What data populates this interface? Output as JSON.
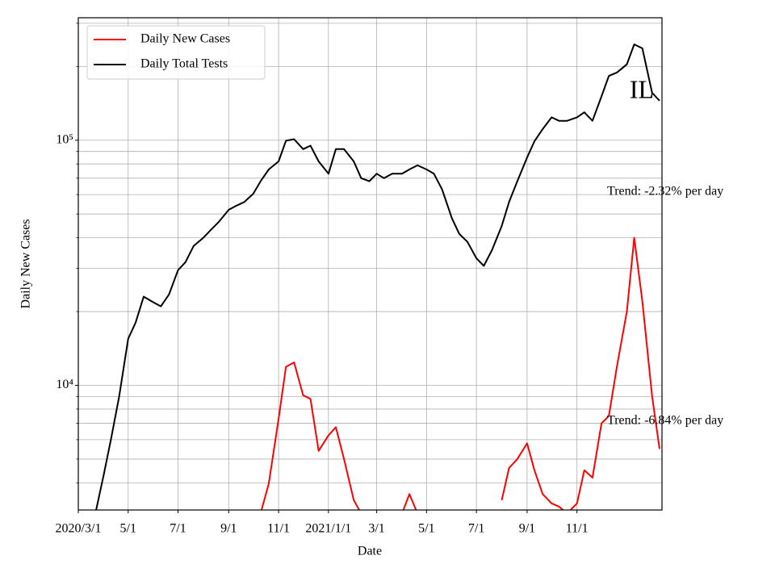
{
  "chart_data": {
    "type": "line",
    "xlabel": "Date",
    "ylabel": "Daily New Cases",
    "log_y": true,
    "grid": true,
    "legend": "upper left",
    "annotations": [
      "IL",
      "Trend: -2.32% per day",
      "Trend: -6.84% per day"
    ],
    "xlim": [
      "2020-03-01",
      "2022-02-13"
    ],
    "ylim": [
      3100,
      316000
    ],
    "xticks": [
      {
        "value": "2020-03-01",
        "label": "2020/3/1"
      },
      {
        "value": "2020-05-01",
        "label": "5/1"
      },
      {
        "value": "2020-07-01",
        "label": "7/1"
      },
      {
        "value": "2020-09-01",
        "label": "9/1"
      },
      {
        "value": "2020-11-01",
        "label": "11/1"
      },
      {
        "value": "2021-01-01",
        "label": "2021/1/1"
      },
      {
        "value": "2021-03-01",
        "label": "3/1"
      },
      {
        "value": "2021-05-01",
        "label": "5/1"
      },
      {
        "value": "2021-07-01",
        "label": "7/1"
      },
      {
        "value": "2021-09-01",
        "label": "9/1"
      },
      {
        "value": "2021-11-01",
        "label": "11/1"
      }
    ],
    "yticks": [
      {
        "value": 10000,
        "label": "10⁴"
      },
      {
        "value": 100000,
        "label": "10⁵"
      }
    ],
    "yticks_minor": [
      4000,
      5000,
      6000,
      7000,
      8000,
      9000,
      20000,
      30000,
      40000,
      50000,
      60000,
      70000,
      80000,
      90000,
      200000,
      300000
    ],
    "x": [
      "2020-03-01",
      "2020-03-10",
      "2020-03-20",
      "2020-04-01",
      "2020-04-10",
      "2020-04-20",
      "2020-05-01",
      "2020-05-10",
      "2020-05-20",
      "2020-06-01",
      "2020-06-10",
      "2020-06-20",
      "2020-07-01",
      "2020-07-10",
      "2020-07-20",
      "2020-08-01",
      "2020-08-10",
      "2020-08-20",
      "2020-09-01",
      "2020-09-10",
      "2020-09-20",
      "2020-10-01",
      "2020-10-10",
      "2020-10-20",
      "2020-11-01",
      "2020-11-10",
      "2020-11-20",
      "2020-12-01",
      "2020-12-10",
      "2020-12-20",
      "2021-01-01",
      "2021-01-10",
      "2021-01-20",
      "2021-02-01",
      "2021-02-10",
      "2021-02-20",
      "2021-03-01",
      "2021-03-10",
      "2021-03-20",
      "2021-04-01",
      "2021-04-10",
      "2021-04-20",
      "2021-05-01",
      "2021-05-10",
      "2021-05-20",
      "2021-06-01",
      "2021-06-10",
      "2021-06-20",
      "2021-07-01",
      "2021-07-10",
      "2021-07-20",
      "2021-08-01",
      "2021-08-10",
      "2021-08-20",
      "2021-09-01",
      "2021-09-10",
      "2021-09-20",
      "2021-10-01",
      "2021-10-10",
      "2021-10-20",
      "2021-11-01",
      "2021-11-10",
      "2021-11-20",
      "2021-12-01",
      "2021-12-10",
      "2021-12-20",
      "2022-01-01",
      "2022-01-10",
      "2022-01-20",
      "2022-02-01",
      "2022-02-10"
    ],
    "series": [
      {
        "name": "Daily New Cases",
        "color": "#ff0000",
        "values": [
          null,
          null,
          null,
          null,
          null,
          null,
          null,
          null,
          null,
          null,
          null,
          null,
          null,
          null,
          null,
          null,
          null,
          null,
          null,
          null,
          null,
          null,
          3000,
          3970,
          7300,
          11900,
          12400,
          9100,
          8800,
          5400,
          6250,
          6750,
          5000,
          3400,
          3000,
          null,
          null,
          null,
          null,
          3000,
          3600,
          3000,
          null,
          null,
          null,
          null,
          null,
          null,
          null,
          null,
          null,
          3400,
          4600,
          5000,
          5800,
          4500,
          3600,
          3300,
          3200,
          3000,
          3300,
          4500,
          4200,
          7000,
          7500,
          12000,
          20000,
          40000,
          22000,
          9000,
          5500
        ]
      },
      {
        "name": "Daily Total Tests",
        "color": "#000000",
        "values": [
          null,
          null,
          2800,
          4300,
          6030,
          9000,
          15500,
          18000,
          23000,
          21800,
          21000,
          23500,
          29500,
          31800,
          37000,
          40000,
          43000,
          46500,
          52000,
          54000,
          56000,
          60500,
          68000,
          76000,
          82000,
          99500,
          101000,
          92000,
          95000,
          82000,
          73000,
          92000,
          92000,
          82000,
          70000,
          68000,
          73000,
          70000,
          73000,
          73000,
          76000,
          79000,
          76000,
          73000,
          63000,
          48000,
          41500,
          38500,
          33000,
          30700,
          35600,
          44700,
          56000,
          68000,
          85000,
          99000,
          111000,
          124000,
          120000,
          120000,
          124000,
          130000,
          120000,
          151000,
          183000,
          189000,
          204000,
          246000,
          237000,
          156000,
          145000
        ]
      }
    ]
  }
}
